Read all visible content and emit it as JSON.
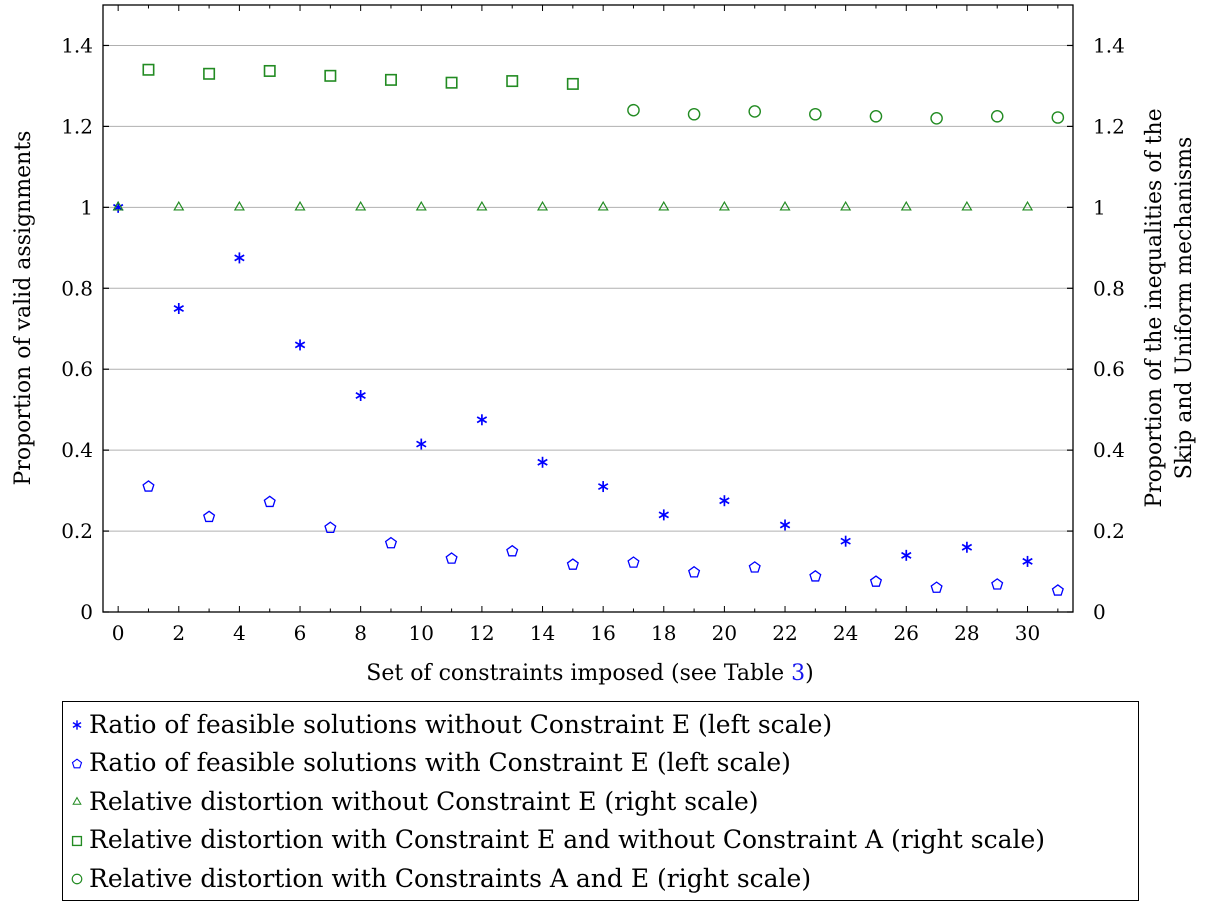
{
  "chart_data": {
    "type": "scatter",
    "xlabel": "Set of constraints imposed (see Table ",
    "xlabel_ref": "3",
    "xlabel_suffix": ")",
    "ylabel_left": "Proportion of valid assignments",
    "ylabel_right_line1": "Proportion of the inequalities of the",
    "ylabel_right_line2": "Skip and Uniform mechanisms",
    "xlim": [
      -0.5,
      31.5
    ],
    "ylim": [
      0,
      1.5
    ],
    "xticks": [
      0,
      2,
      4,
      6,
      8,
      10,
      12,
      14,
      16,
      18,
      20,
      22,
      24,
      26,
      28,
      30
    ],
    "yticks": [
      0,
      0.2,
      0.4,
      0.6,
      0.8,
      1,
      1.2,
      1.4
    ],
    "ytick_labels": [
      "0",
      "0.2",
      "0.4",
      "0.6",
      "0.8",
      "1",
      "1.2",
      "1.4"
    ],
    "grid": "horizontal",
    "legend_position": "bottom",
    "series": [
      {
        "name": "Ratio of feasible solutions without Constraint E (left scale)",
        "marker": "asterisk",
        "color": "#0000ff",
        "x": [
          0,
          2,
          4,
          6,
          8,
          10,
          12,
          14,
          16,
          18,
          20,
          22,
          24,
          26,
          28,
          30
        ],
        "y": [
          1.0,
          0.75,
          0.875,
          0.66,
          0.535,
          0.415,
          0.475,
          0.37,
          0.31,
          0.24,
          0.275,
          0.215,
          0.175,
          0.14,
          0.16,
          0.125
        ]
      },
      {
        "name": "Ratio of feasible solutions with Constraint E (left scale)",
        "marker": "pentagon",
        "color": "#0000ff",
        "x": [
          1,
          3,
          5,
          7,
          9,
          11,
          13,
          15,
          17,
          19,
          21,
          23,
          25,
          27,
          29,
          31
        ],
        "y": [
          0.31,
          0.235,
          0.272,
          0.208,
          0.17,
          0.132,
          0.15,
          0.117,
          0.122,
          0.098,
          0.11,
          0.088,
          0.075,
          0.06,
          0.068,
          0.053
        ]
      },
      {
        "name": "Relative distortion without Constraint E (right scale)",
        "marker": "triangle",
        "color": "#228b22",
        "x": [
          0,
          2,
          4,
          6,
          8,
          10,
          12,
          14,
          16,
          18,
          20,
          22,
          24,
          26,
          28,
          30
        ],
        "y": [
          1,
          1,
          1,
          1,
          1,
          1,
          1,
          1,
          1,
          1,
          1,
          1,
          1,
          1,
          1,
          1
        ]
      },
      {
        "name": "Relative distortion with Constraint E and without Constraint A (right scale)",
        "marker": "square",
        "color": "#228b22",
        "x": [
          1,
          3,
          5,
          7,
          9,
          11,
          13,
          15
        ],
        "y": [
          1.34,
          1.33,
          1.337,
          1.325,
          1.315,
          1.308,
          1.312,
          1.305
        ]
      },
      {
        "name": "Relative distortion with Constraints A and E (right scale)",
        "marker": "circle",
        "color": "#228b22",
        "x": [
          17,
          19,
          21,
          23,
          25,
          27,
          29,
          31
        ],
        "y": [
          1.24,
          1.23,
          1.237,
          1.23,
          1.225,
          1.22,
          1.225,
          1.222
        ]
      }
    ]
  }
}
